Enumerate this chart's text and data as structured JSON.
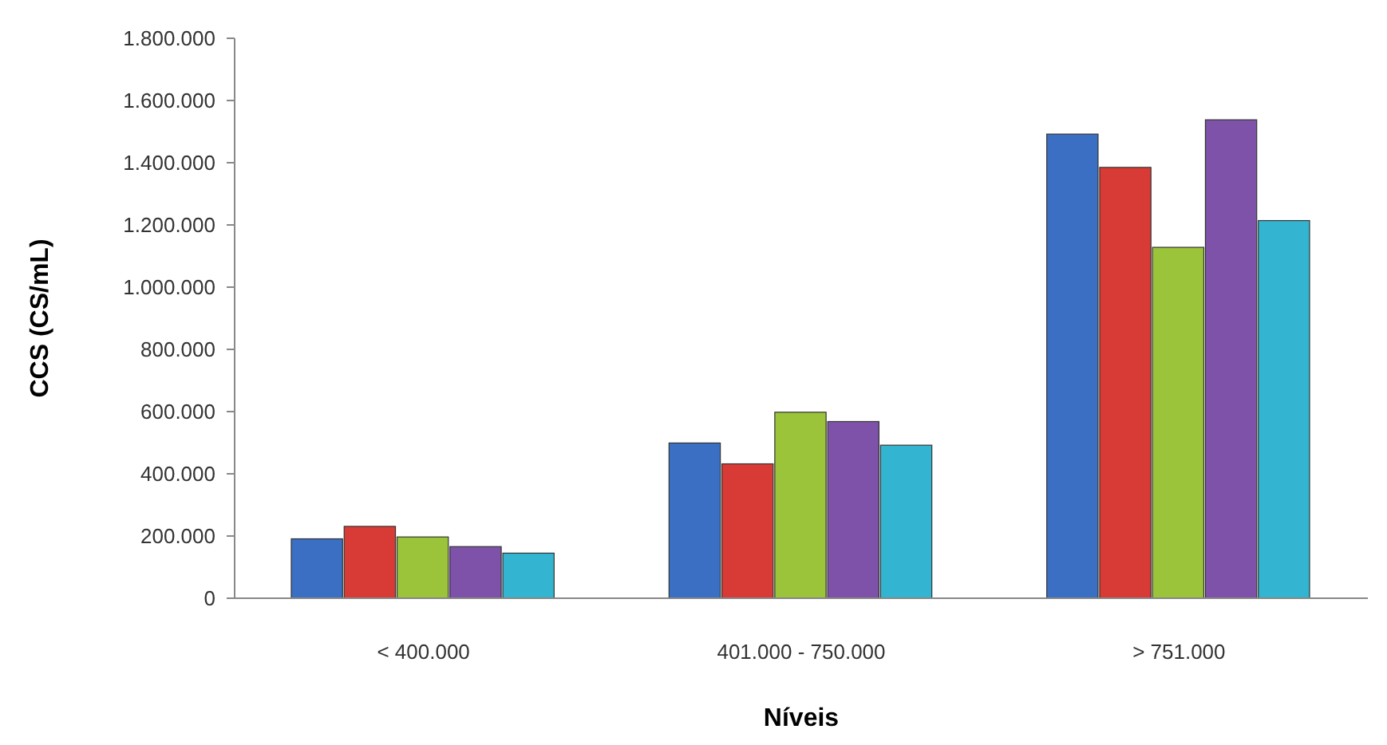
{
  "chart_data": {
    "type": "bar",
    "xlabel": "Níveis",
    "ylabel": "CCS (CS/mL)",
    "categories": [
      "< 400.000",
      "401.000 - 750.000",
      "> 751.000"
    ],
    "series": [
      {
        "color": "#3a6fc4",
        "values": [
          191000,
          499000,
          1492000
        ]
      },
      {
        "color": "#d83b35",
        "values": [
          231000,
          432000,
          1385000
        ]
      },
      {
        "color": "#9bc43a",
        "values": [
          197000,
          598000,
          1128000
        ]
      },
      {
        "color": "#7d52a8",
        "values": [
          166000,
          568000,
          1538000
        ]
      },
      {
        "color": "#33b4d0",
        "values": [
          145000,
          492000,
          1214000
        ]
      }
    ],
    "ylim": [
      0,
      1800000
    ],
    "yticks": [
      {
        "value": 0,
        "label": "0"
      },
      {
        "value": 200000,
        "label": "200.000"
      },
      {
        "value": 400000,
        "label": "400.000"
      },
      {
        "value": 600000,
        "label": "600.000"
      },
      {
        "value": 800000,
        "label": "800.000"
      },
      {
        "value": 1000000,
        "label": "1.000.000"
      },
      {
        "value": 1200000,
        "label": "1.200.000"
      },
      {
        "value": 1400000,
        "label": "1.400.000"
      },
      {
        "value": 1600000,
        "label": "1.600.000"
      },
      {
        "value": 1800000,
        "label": "1.800.000"
      }
    ],
    "grid": false
  }
}
